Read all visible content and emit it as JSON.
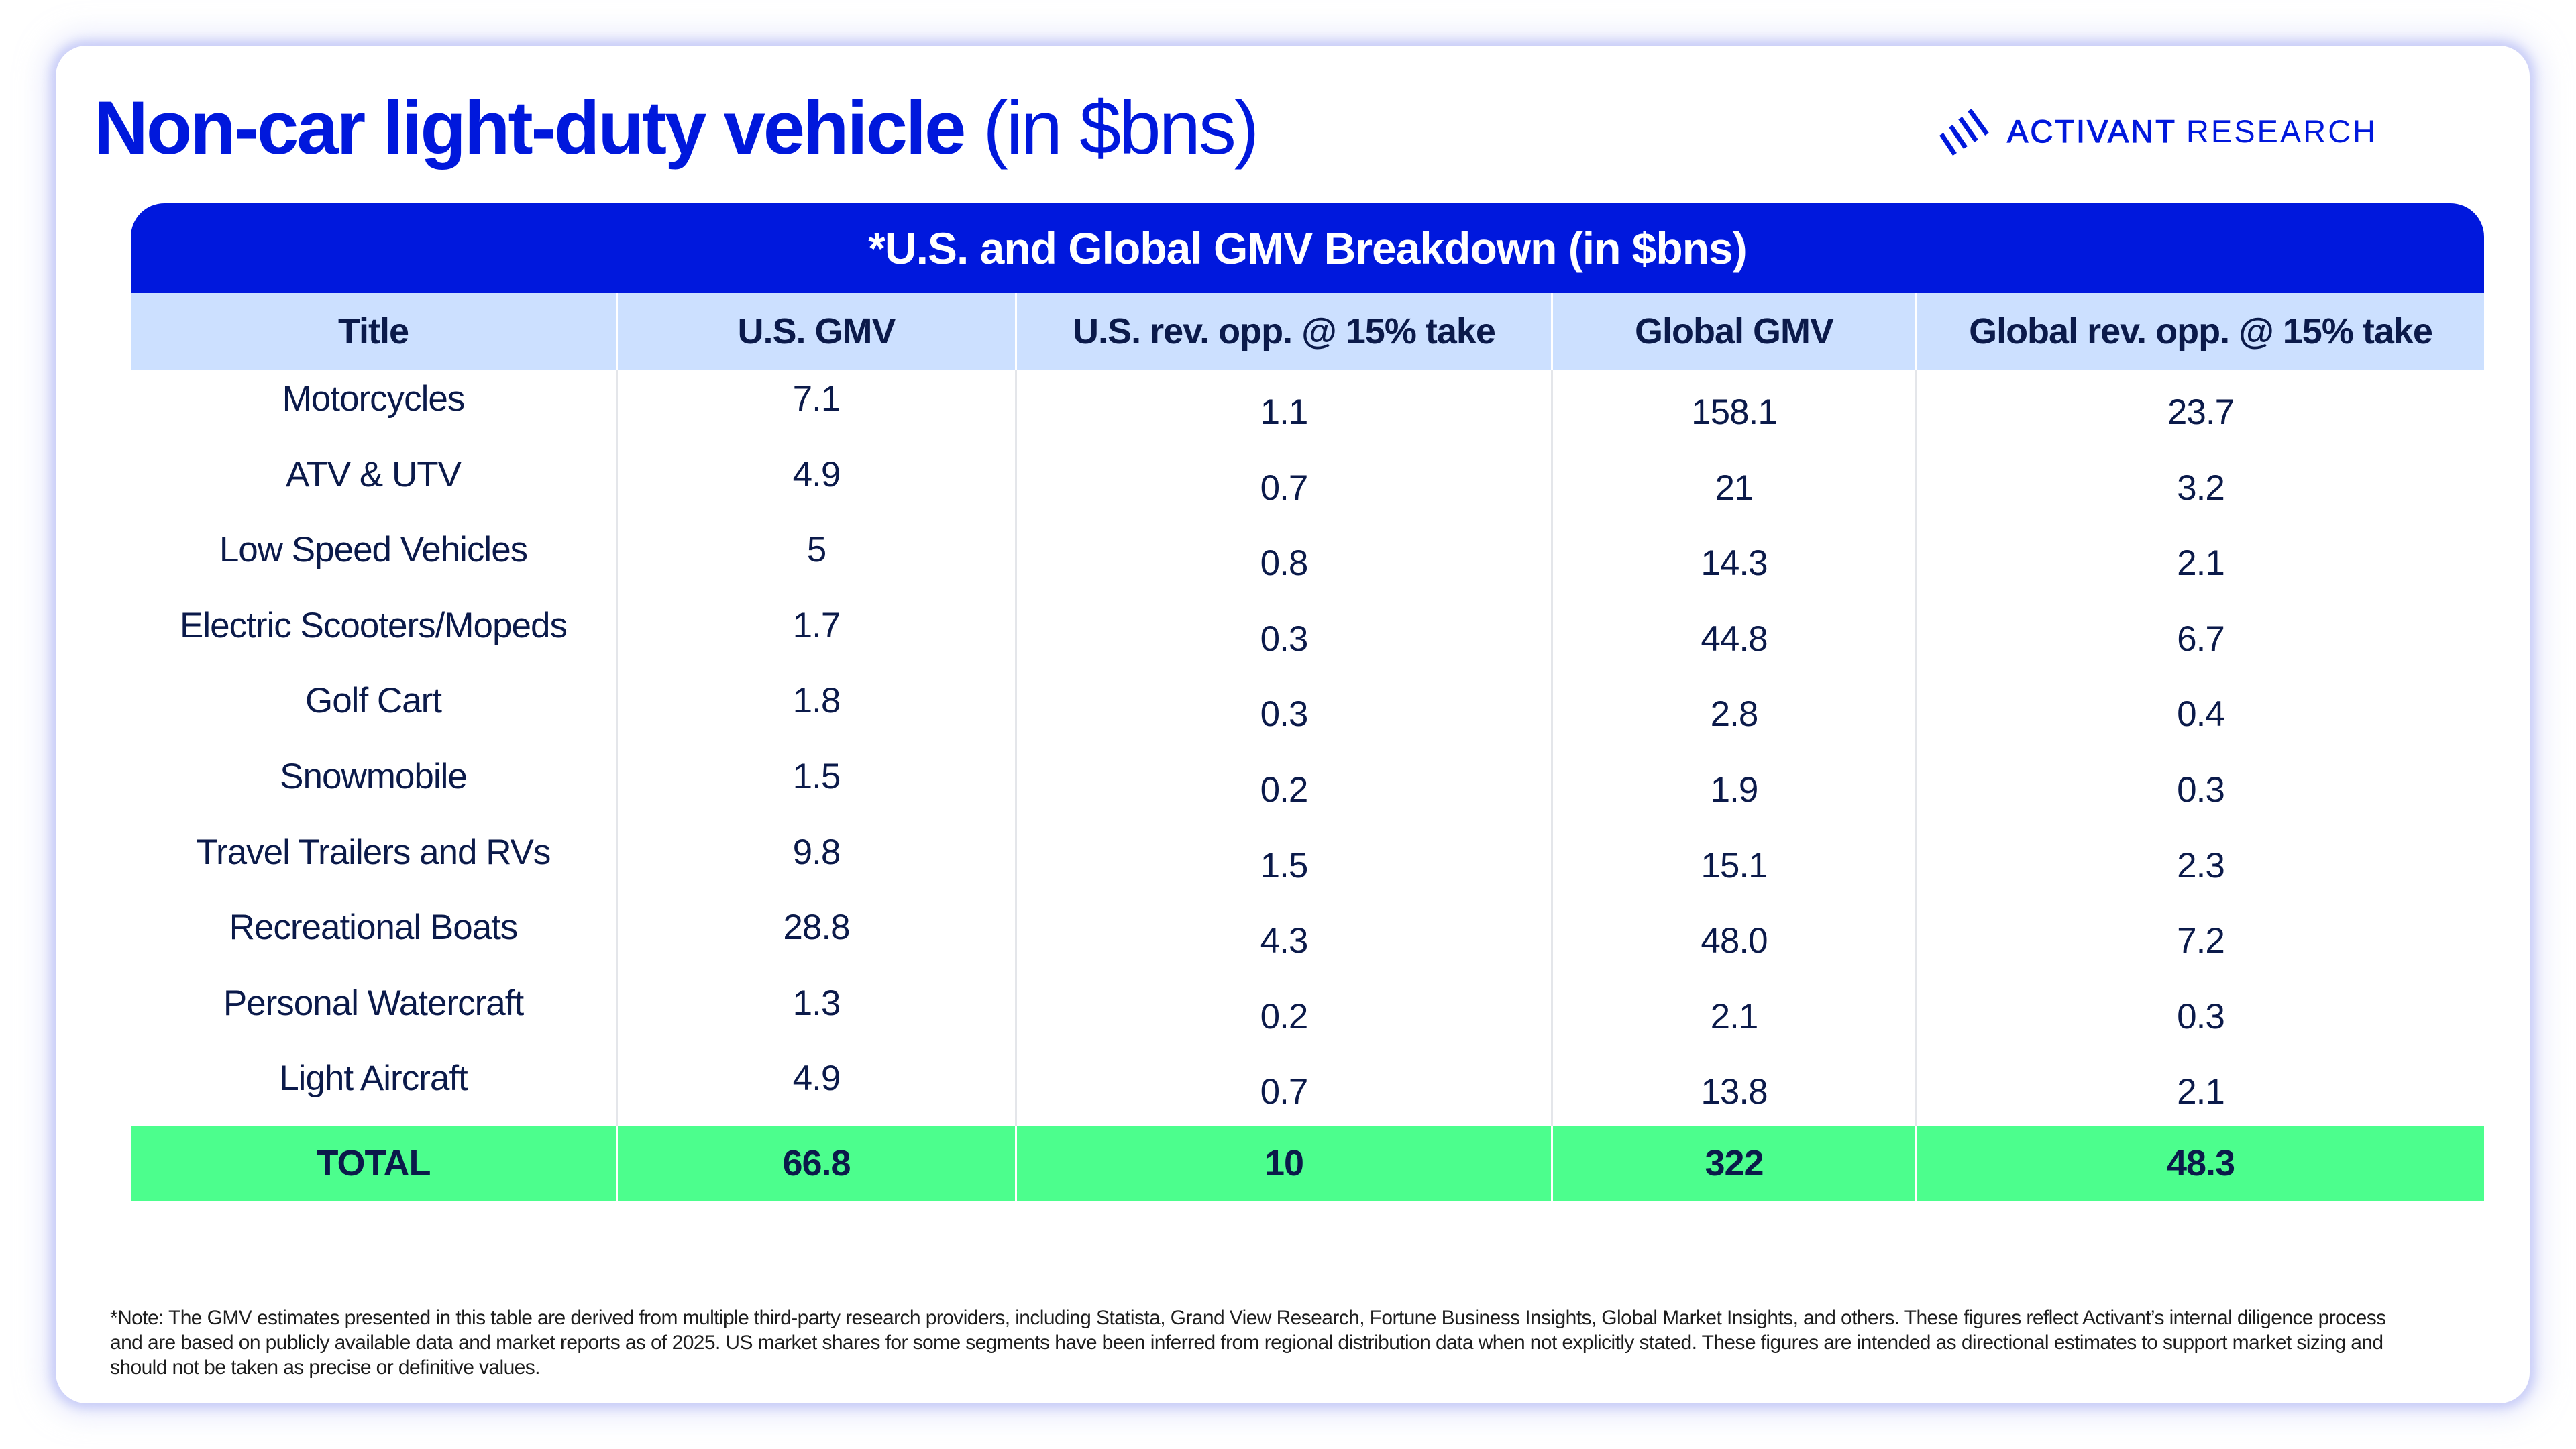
{
  "page": {
    "title_bold": "Non-car light-duty vehicle",
    "title_light": "(in $bns)"
  },
  "logo": {
    "brand_primary": "ACTIVANT",
    "brand_secondary": "RESEARCH",
    "icon": "diagonal-stripes-logo-icon"
  },
  "colors": {
    "brand_blue": "#0018DC",
    "header_row_bg": "#CCE0FF",
    "total_row_bg": "#4CFE8D",
    "text_navy": "#0B1A4A"
  },
  "table": {
    "banner": "*U.S. and Global GMV Breakdown (in $bns)",
    "columns": [
      "Title",
      "U.S. GMV",
      "U.S. rev. opp. @ 15% take",
      "Global GMV",
      "Global rev. opp. @ 15% take"
    ],
    "rows": [
      [
        "Motorcycles",
        "7.1",
        "1.1",
        "158.1",
        "23.7"
      ],
      [
        "ATV & UTV",
        "4.9",
        "0.7",
        "21",
        "3.2"
      ],
      [
        "Low Speed Vehicles",
        "5",
        "0.8",
        "14.3",
        "2.1"
      ],
      [
        "Electric Scooters/Mopeds",
        "1.7",
        "0.3",
        "44.8",
        "6.7"
      ],
      [
        "Golf Cart",
        "1.8",
        "0.3",
        "2.8",
        "0.4"
      ],
      [
        "Snowmobile",
        "1.5",
        "0.2",
        "1.9",
        "0.3"
      ],
      [
        "Travel Trailers and RVs",
        "9.8",
        "1.5",
        "15.1",
        "2.3"
      ],
      [
        "Recreational Boats",
        "28.8",
        "4.3",
        "48.0",
        "7.2"
      ],
      [
        "Personal Watercraft",
        "1.3",
        "0.2",
        "2.1",
        "0.3"
      ],
      [
        "Light Aircraft",
        "4.9",
        "0.7",
        "13.8",
        "2.1"
      ]
    ],
    "total": [
      "TOTAL",
      "66.8",
      "10",
      "322",
      "48.3"
    ]
  },
  "footnote": "*Note: The GMV estimates presented in this table are derived from multiple third-party research providers, including Statista, Grand View Research, Fortune Business Insights, Global Market Insights, and others. These figures reflect Activant’s internal diligence process and are based on publicly available data and market reports as of 2025. US market shares for some segments have been inferred from regional distribution data when not explicitly stated. These figures are intended as directional estimates to support market sizing and should not be taken as precise or definitive values."
}
